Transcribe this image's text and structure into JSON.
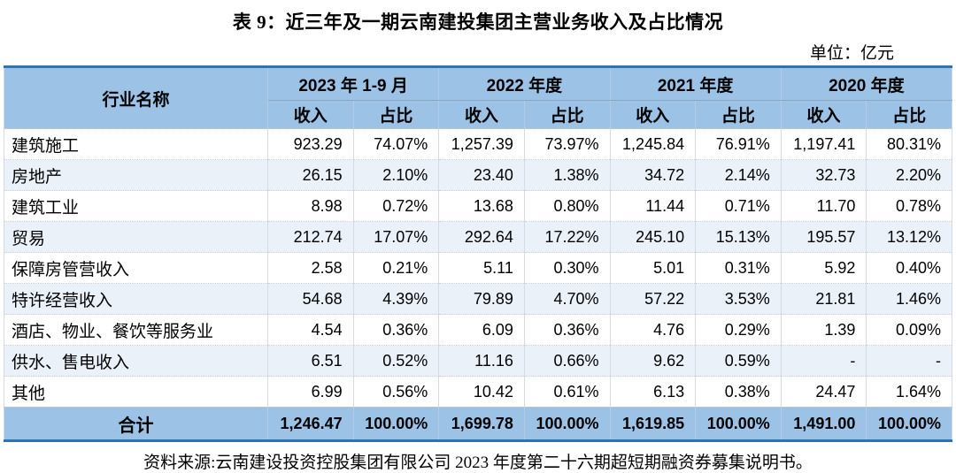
{
  "page": {
    "title": "表 9：近三年及一期云南建投集团主营业务收入及占比情况",
    "unit_label": "单位：亿元",
    "source_note": "资料来源:云南建设投资控股集团有限公司 2023 年度第二十六期超短期融资券募集说明书。"
  },
  "table": {
    "row_header_label": "行业名称",
    "period_headers": [
      "2023 年 1-9 月",
      "2022 年度",
      "2021 年度",
      "2020 年度"
    ],
    "sub_headers": [
      "收入",
      "占比"
    ],
    "rows": [
      {
        "label": "建筑施工",
        "values": [
          "923.29",
          "74.07%",
          "1,257.39",
          "73.97%",
          "1,245.84",
          "76.91%",
          "1,197.41",
          "80.31%"
        ]
      },
      {
        "label": "房地产",
        "values": [
          "26.15",
          "2.10%",
          "23.40",
          "1.38%",
          "34.72",
          "2.14%",
          "32.73",
          "2.20%"
        ]
      },
      {
        "label": "建筑工业",
        "values": [
          "8.98",
          "0.72%",
          "13.68",
          "0.80%",
          "11.44",
          "0.71%",
          "11.70",
          "0.78%"
        ]
      },
      {
        "label": "贸易",
        "values": [
          "212.74",
          "17.07%",
          "292.64",
          "17.22%",
          "245.10",
          "15.13%",
          "195.57",
          "13.12%"
        ]
      },
      {
        "label": "保障房管营收入",
        "values": [
          "2.58",
          "0.21%",
          "5.11",
          "0.30%",
          "5.01",
          "0.31%",
          "5.92",
          "0.40%"
        ]
      },
      {
        "label": "特许经营收入",
        "values": [
          "54.68",
          "4.39%",
          "79.89",
          "4.70%",
          "57.22",
          "3.53%",
          "21.81",
          "1.46%"
        ]
      },
      {
        "label": "酒店、物业、餐饮等服务业",
        "values": [
          "4.54",
          "0.36%",
          "6.09",
          "0.36%",
          "4.76",
          "0.29%",
          "1.39",
          "0.09%"
        ]
      },
      {
        "label": "供水、售电收入",
        "values": [
          "6.51",
          "0.52%",
          "11.16",
          "0.66%",
          "9.62",
          "0.59%",
          "-",
          "-"
        ]
      },
      {
        "label": "其他",
        "values": [
          "6.99",
          "0.56%",
          "10.42",
          "0.61%",
          "6.13",
          "0.38%",
          "24.47",
          "1.64%"
        ]
      }
    ],
    "total": {
      "label": "合计",
      "values": [
        "1,246.47",
        "100.00%",
        "1,699.78",
        "100.00%",
        "1,619.85",
        "100.00%",
        "1,491.00",
        "100.00%"
      ]
    }
  },
  "colors": {
    "header_fill": "#9CC3E6",
    "shaded_row_fill": "#EAF1F9",
    "accent_border": "#2E74B5"
  }
}
